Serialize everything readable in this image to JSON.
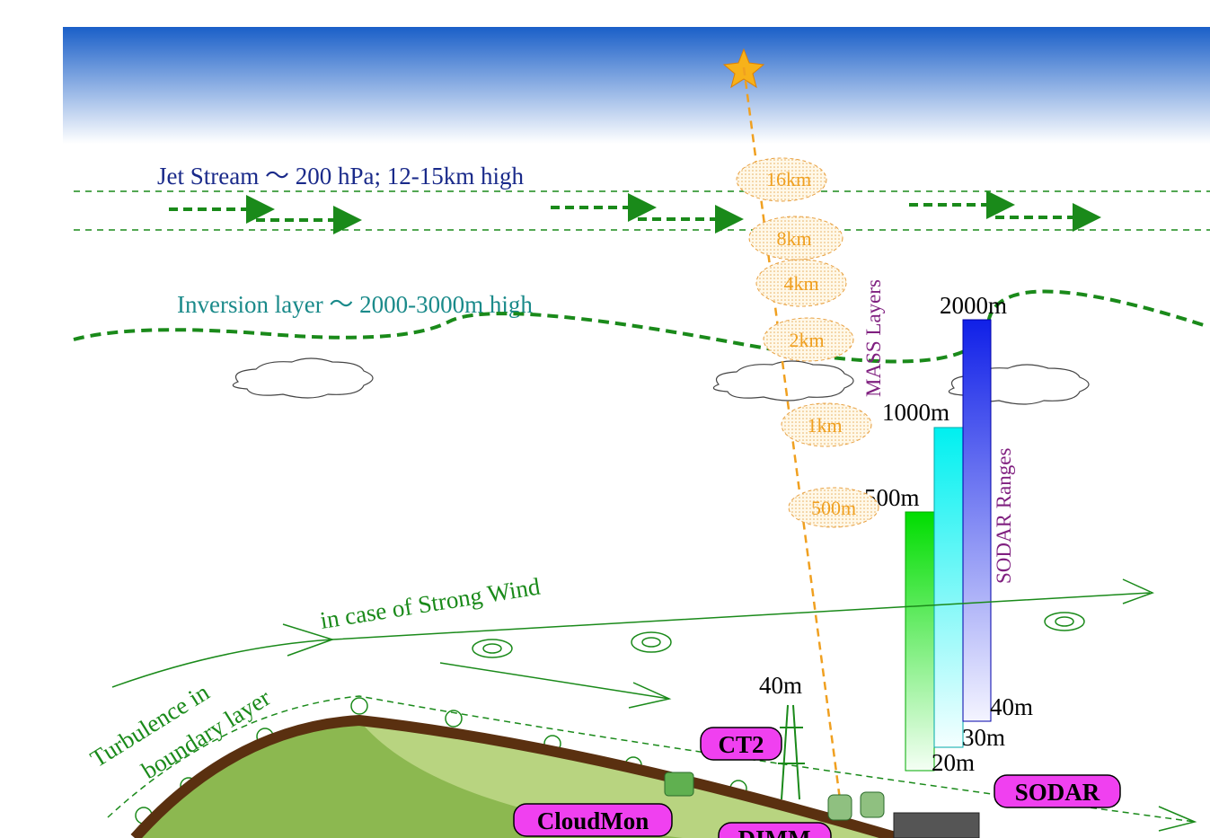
{
  "jet_stream": "Jet Stream ～ 200 hPa; 12-15km high",
  "inversion_layer": "Inversion layer ～ 2000-3000m high",
  "mass": {
    "label": "MASS Layers",
    "layers": [
      "16km",
      "8km",
      "4km",
      "2km",
      "1km",
      "500m"
    ]
  },
  "sodar": {
    "label": "SODAR Ranges",
    "bars": [
      {
        "top": "500m",
        "bottom": "20m"
      },
      {
        "top": "1000m",
        "bottom": "30m"
      },
      {
        "top": "2000m",
        "bottom": "40m"
      }
    ]
  },
  "strong_wind": "in case of Strong Wind",
  "turbulence": [
    "Turbulence in",
    "boundary layer"
  ],
  "tower_height": "40m",
  "instruments": {
    "ct2": "CT2",
    "cloudmon": "CloudMon",
    "dimm": "DIMM",
    "sodar": "SODAR"
  }
}
